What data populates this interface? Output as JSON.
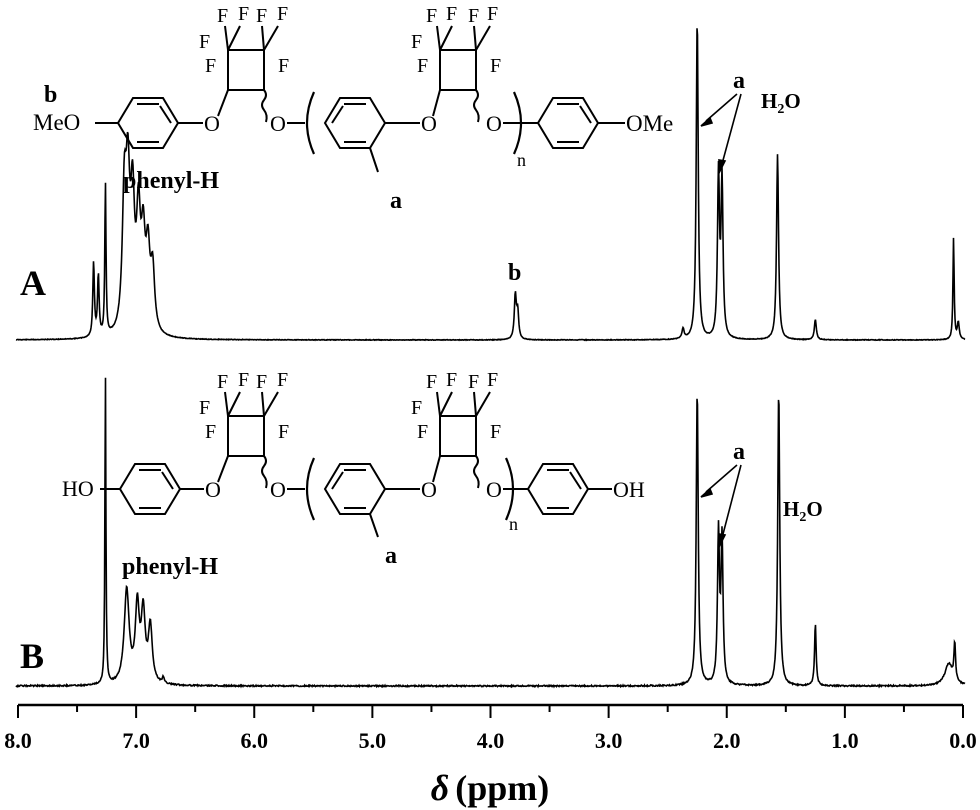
{
  "chart_data": {
    "type": "line",
    "xlabel_symbol": "δ",
    "xlabel_unit": "(ppm)",
    "xlim": [
      8.0,
      0.0
    ],
    "x_reversed": true,
    "x_ticks": [
      "8.0",
      "7.0",
      "6.0",
      "5.0",
      "4.0",
      "3.0",
      "2.0",
      "1.0",
      "0.0"
    ],
    "grid": false,
    "panels": [
      {
        "label": "A",
        "series": [
          {
            "peaks": [
              {
                "ppm": 7.36,
                "height": 0.22,
                "width": 0.008
              },
              {
                "ppm": 7.32,
                "height": 0.18,
                "width": 0.008
              },
              {
                "ppm": 7.26,
                "height": 0.45,
                "width": 0.006
              },
              {
                "ppm": 7.1,
                "height": 0.38,
                "width": 0.02
              },
              {
                "ppm": 7.07,
                "height": 0.4,
                "width": 0.02
              },
              {
                "ppm": 7.03,
                "height": 0.36,
                "width": 0.02
              },
              {
                "ppm": 6.98,
                "height": 0.32,
                "width": 0.02
              },
              {
                "ppm": 6.94,
                "height": 0.25,
                "width": 0.02
              },
              {
                "ppm": 6.9,
                "height": 0.22,
                "width": 0.02
              },
              {
                "ppm": 6.86,
                "height": 0.18,
                "width": 0.02
              },
              {
                "ppm": 3.79,
                "height": 0.13,
                "width": 0.01
              },
              {
                "ppm": 3.77,
                "height": 0.08,
                "width": 0.01
              },
              {
                "ppm": 2.37,
                "height": 0.03,
                "width": 0.01
              },
              {
                "ppm": 2.25,
                "height": 0.95,
                "width": 0.01
              },
              {
                "ppm": 2.07,
                "height": 0.48,
                "width": 0.01
              },
              {
                "ppm": 2.04,
                "height": 0.46,
                "width": 0.01
              },
              {
                "ppm": 1.57,
                "height": 0.55,
                "width": 0.01
              },
              {
                "ppm": 1.25,
                "height": 0.06,
                "width": 0.01
              },
              {
                "ppm": 0.08,
                "height": 0.3,
                "width": 0.006
              },
              {
                "ppm": 0.04,
                "height": 0.05,
                "width": 0.01
              }
            ]
          }
        ],
        "annotations": {
          "phenyl": "phenyl-H",
          "b": "b",
          "a": "a",
          "water": "H",
          "water_sub": "2",
          "water_tail": "O"
        },
        "structure": {
          "end_left": "MeO",
          "end_right": "OMe",
          "proton_label_end": "b",
          "proton_label_methyl": "a",
          "repeat": "n",
          "fluorine": "F",
          "oxygen": "O"
        }
      },
      {
        "label": "B",
        "series": [
          {
            "peaks": [
              {
                "ppm": 7.26,
                "height": 1.0,
                "width": 0.005
              },
              {
                "ppm": 7.08,
                "height": 0.3,
                "width": 0.025
              },
              {
                "ppm": 6.99,
                "height": 0.24,
                "width": 0.02
              },
              {
                "ppm": 6.94,
                "height": 0.22,
                "width": 0.02
              },
              {
                "ppm": 6.88,
                "height": 0.18,
                "width": 0.02
              },
              {
                "ppm": 6.77,
                "height": 0.02,
                "width": 0.01
              },
              {
                "ppm": 2.25,
                "height": 0.95,
                "width": 0.01
              },
              {
                "ppm": 2.07,
                "height": 0.48,
                "width": 0.01
              },
              {
                "ppm": 2.04,
                "height": 0.46,
                "width": 0.01
              },
              {
                "ppm": 1.56,
                "height": 0.95,
                "width": 0.01
              },
              {
                "ppm": 1.25,
                "height": 0.2,
                "width": 0.008
              },
              {
                "ppm": 0.12,
                "height": 0.07,
                "width": 0.04
              },
              {
                "ppm": 0.07,
                "height": 0.12,
                "width": 0.008
              }
            ]
          }
        ],
        "annotations": {
          "phenyl": "phenyl-H",
          "a": "a",
          "water": "H",
          "water_sub": "2",
          "water_tail": "O"
        },
        "structure": {
          "end_left": "HO",
          "end_right": "OH",
          "proton_label_methyl": "a",
          "repeat": "n",
          "fluorine": "F",
          "oxygen": "O"
        }
      }
    ]
  }
}
